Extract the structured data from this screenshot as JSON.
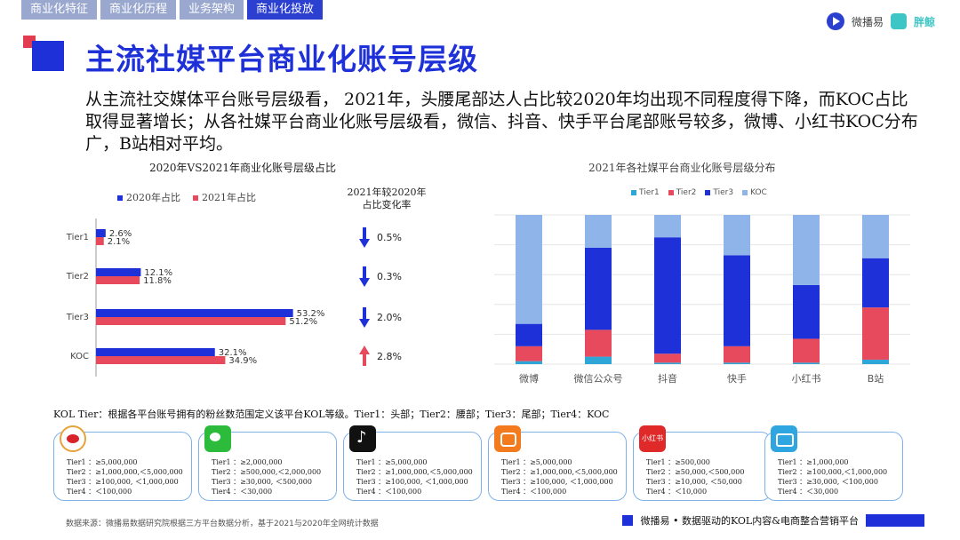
{
  "nav": {
    "tabs": [
      "商业化特征",
      "商业化历程",
      "业务架构",
      "商业化投放"
    ],
    "active_index": 3
  },
  "brand": {
    "logo1": "微播易",
    "logo2": "胖鲸"
  },
  "title": "主流社媒平台商业化账号层级",
  "description": "从主流社交媒体平台账号层级看， 2021年，头腰尾部达人占比较2020年均出现不同程度得下降，而KOC占比取得显著增长；从各社媒平台商业化账号层级看，微信、抖音、快手平台尾部账号较多，微博、小红书KOC分布广，B站相对平均。",
  "colors": {
    "accent": "#1e30d8",
    "red": "#e23c52",
    "tier1": "#2fa6d8",
    "tier2": "#e64a5c",
    "tier3": "#1e30d8",
    "koc": "#8fb4ea",
    "down": "#1e30d8",
    "up": "#e64a5c"
  },
  "left_chart": {
    "title": "2020年VS2021年商业化账号层级占比",
    "rate_title": "2021年较2020年\n占比变化率",
    "legend": [
      "2020年占比",
      "2021年占比"
    ]
  },
  "right_chart": {
    "title": "2021年各社媒平台商业化账号层级分布",
    "legend": [
      "Tier1",
      "Tier2",
      "Tier3",
      "KOC"
    ]
  },
  "chart_data": [
    {
      "type": "bar",
      "orientation": "horizontal",
      "title": "2020年VS2021年商业化账号层级占比",
      "categories": [
        "Tier1",
        "Tier2",
        "Tier3",
        "KOC"
      ],
      "series": [
        {
          "name": "2020年占比",
          "values": [
            2.6,
            12.1,
            53.2,
            32.1
          ],
          "labels": [
            "2.6%",
            "12.1%",
            "53.2%",
            "32.1%"
          ]
        },
        {
          "name": "2021年占比",
          "values": [
            2.1,
            11.8,
            51.2,
            34.9
          ],
          "labels": [
            "2.1%",
            "11.8%",
            "51.2%",
            "34.9%"
          ]
        }
      ],
      "change_rate": {
        "title": "2021年较2020年占比变化率",
        "directions": [
          "down",
          "down",
          "down",
          "up"
        ],
        "labels": [
          "0.5%",
          "0.3%",
          "2.0%",
          "2.8%"
        ]
      },
      "xlim": [
        0,
        60
      ]
    },
    {
      "type": "bar",
      "stacked": true,
      "title": "2021年各社媒平台商业化账号层级分布",
      "categories": [
        "微博",
        "微信公众号",
        "抖音",
        "快手",
        "小红书",
        "B站"
      ],
      "series": [
        {
          "name": "Tier1",
          "values": [
            2,
            5,
            1,
            1,
            1,
            3
          ]
        },
        {
          "name": "Tier2",
          "values": [
            10,
            18,
            6,
            11,
            16,
            35
          ]
        },
        {
          "name": "Tier3",
          "values": [
            15,
            55,
            78,
            61,
            36,
            33
          ]
        },
        {
          "name": "KOC",
          "values": [
            73,
            22,
            15,
            27,
            47,
            29
          ]
        }
      ],
      "ylim": [
        0,
        100
      ],
      "grid": true
    }
  ],
  "definition": "KOL Tier：根据各平台账号拥有的粉丝数范围定义该平台KOL等级。Tier1：头部；Tier2：腰部；Tier3：尾部；Tier4：KOC",
  "cards": [
    {
      "platform": "weibo-icon",
      "icon_text": "",
      "lines": [
        "Tier1 ：≥5,000,000",
        "Tier2 ：≥1,000,000,＜5,000,000",
        "Tier3 ：≥100,000, ＜1,000,000",
        "Tier4 ：＜100,000"
      ]
    },
    {
      "platform": "wechat-icon",
      "icon_text": "",
      "lines": [
        "Tier1 ：≥2,000,000",
        "Tier2 ：≥500,000,＜2,000,000",
        "Tier3 ：≥30,000, ＜500,000",
        "Tier4 ：＜30,000"
      ]
    },
    {
      "platform": "douyin-icon",
      "icon_text": "",
      "lines": [
        "Tier1 ：≥5,000,000",
        "Tier2 ：≥1,000,000,＜5,000,000",
        "Tier3 ：≥100,000, ＜1,000,000",
        "Tier4 ：＜100,000"
      ]
    },
    {
      "platform": "kuaishou-icon",
      "icon_text": "",
      "lines": [
        "Tier1 ：≥5,000,000",
        "Tier2 ：≥1,000,000,＜5,000,000",
        "Tier3 ：≥100,000, ＜1,000,000",
        "Tier4 ：＜100,000"
      ]
    },
    {
      "platform": "xiaohongshu-icon",
      "icon_text": "小红书",
      "lines": [
        "Tier1 ：≥500,000",
        "Tier2 ：≥50,000,＜500,000",
        "Tier3 ：≥10,000, ＜50,000",
        "Tier4 ：＜10,000"
      ]
    },
    {
      "platform": "bilibili-icon",
      "icon_text": "",
      "lines": [
        "Tier1 ：≥1,000,000",
        "Tier2 ：≥100,000,＜1,000,000",
        "Tier3 ：≥30,000, ＜100,000",
        "Tier4 ：＜30,000"
      ]
    }
  ],
  "footer": {
    "source": "数据来源：微播易数据研究院根据三方平台数据分析，基于2021与2020年全网统计数据",
    "tagline": "微播易 • 数据驱动的KOL内容&电商整合营销平台"
  }
}
